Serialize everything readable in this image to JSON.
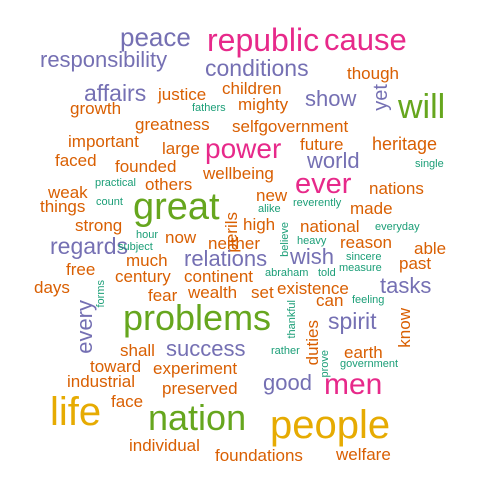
{
  "palette": {
    "orange": "#d95f02",
    "purple": "#7570b3",
    "magenta": "#e7298a",
    "green": "#66a61e",
    "gold": "#e6ab02",
    "teal": "#1b9e77"
  },
  "words": [
    {
      "text": "republic",
      "color": "magenta"
    },
    {
      "text": "cause",
      "color": "magenta"
    },
    {
      "text": "peace",
      "color": "purple"
    },
    {
      "text": "responsibility",
      "color": "purple"
    },
    {
      "text": "conditions",
      "color": "purple"
    },
    {
      "text": "though",
      "color": "orange"
    },
    {
      "text": "children",
      "color": "orange"
    },
    {
      "text": "affairs",
      "color": "purple"
    },
    {
      "text": "justice",
      "color": "orange"
    },
    {
      "text": "show",
      "color": "purple"
    },
    {
      "text": "yet",
      "color": "purple"
    },
    {
      "text": "will",
      "color": "green"
    },
    {
      "text": "growth",
      "color": "orange"
    },
    {
      "text": "fathers",
      "color": "teal"
    },
    {
      "text": "mighty",
      "color": "orange"
    },
    {
      "text": "greatness",
      "color": "orange"
    },
    {
      "text": "selfgovernment",
      "color": "orange"
    },
    {
      "text": "important",
      "color": "orange"
    },
    {
      "text": "large",
      "color": "orange"
    },
    {
      "text": "power",
      "color": "magenta"
    },
    {
      "text": "future",
      "color": "orange"
    },
    {
      "text": "heritage",
      "color": "orange"
    },
    {
      "text": "faced",
      "color": "orange"
    },
    {
      "text": "founded",
      "color": "orange"
    },
    {
      "text": "world",
      "color": "purple"
    },
    {
      "text": "single",
      "color": "teal"
    },
    {
      "text": "wellbeing",
      "color": "orange"
    },
    {
      "text": "practical",
      "color": "teal"
    },
    {
      "text": "others",
      "color": "orange"
    },
    {
      "text": "ever",
      "color": "magenta"
    },
    {
      "text": "nations",
      "color": "orange"
    },
    {
      "text": "weak",
      "color": "orange"
    },
    {
      "text": "things",
      "color": "orange"
    },
    {
      "text": "count",
      "color": "teal"
    },
    {
      "text": "great",
      "color": "green"
    },
    {
      "text": "new",
      "color": "orange"
    },
    {
      "text": "reverently",
      "color": "teal"
    },
    {
      "text": "made",
      "color": "orange"
    },
    {
      "text": "alike",
      "color": "teal"
    },
    {
      "text": "strong",
      "color": "orange"
    },
    {
      "text": "perils",
      "color": "orange"
    },
    {
      "text": "high",
      "color": "orange"
    },
    {
      "text": "national",
      "color": "orange"
    },
    {
      "text": "everyday",
      "color": "teal"
    },
    {
      "text": "hour",
      "color": "teal"
    },
    {
      "text": "now",
      "color": "orange"
    },
    {
      "text": "believe",
      "color": "teal"
    },
    {
      "text": "regards",
      "color": "purple"
    },
    {
      "text": "subject",
      "color": "teal"
    },
    {
      "text": "neither",
      "color": "orange"
    },
    {
      "text": "heavy",
      "color": "teal"
    },
    {
      "text": "reason",
      "color": "orange"
    },
    {
      "text": "able",
      "color": "orange"
    },
    {
      "text": "much",
      "color": "orange"
    },
    {
      "text": "relations",
      "color": "purple"
    },
    {
      "text": "wish",
      "color": "purple"
    },
    {
      "text": "sincere",
      "color": "teal"
    },
    {
      "text": "free",
      "color": "orange"
    },
    {
      "text": "measure",
      "color": "teal"
    },
    {
      "text": "past",
      "color": "orange"
    },
    {
      "text": "century",
      "color": "orange"
    },
    {
      "text": "continent",
      "color": "orange"
    },
    {
      "text": "abraham",
      "color": "teal"
    },
    {
      "text": "told",
      "color": "teal"
    },
    {
      "text": "days",
      "color": "orange"
    },
    {
      "text": "forms",
      "color": "teal"
    },
    {
      "text": "existence",
      "color": "orange"
    },
    {
      "text": "tasks",
      "color": "purple"
    },
    {
      "text": "fear",
      "color": "orange"
    },
    {
      "text": "wealth",
      "color": "orange"
    },
    {
      "text": "set",
      "color": "orange"
    },
    {
      "text": "thankful",
      "color": "teal"
    },
    {
      "text": "can",
      "color": "orange"
    },
    {
      "text": "feeling",
      "color": "teal"
    },
    {
      "text": "every",
      "color": "purple"
    },
    {
      "text": "problems",
      "color": "green"
    },
    {
      "text": "spirit",
      "color": "purple"
    },
    {
      "text": "know",
      "color": "orange"
    },
    {
      "text": "duties",
      "color": "orange"
    },
    {
      "text": "success",
      "color": "purple"
    },
    {
      "text": "shall",
      "color": "orange"
    },
    {
      "text": "rather",
      "color": "teal"
    },
    {
      "text": "earth",
      "color": "orange"
    },
    {
      "text": "prove",
      "color": "teal"
    },
    {
      "text": "government",
      "color": "teal"
    },
    {
      "text": "toward",
      "color": "orange"
    },
    {
      "text": "experiment",
      "color": "orange"
    },
    {
      "text": "industrial",
      "color": "orange"
    },
    {
      "text": "good",
      "color": "purple"
    },
    {
      "text": "men",
      "color": "magenta"
    },
    {
      "text": "preserved",
      "color": "orange"
    },
    {
      "text": "life",
      "color": "gold"
    },
    {
      "text": "face",
      "color": "orange"
    },
    {
      "text": "nation",
      "color": "green"
    },
    {
      "text": "people",
      "color": "gold"
    },
    {
      "text": "individual",
      "color": "orange"
    },
    {
      "text": "foundations",
      "color": "orange"
    },
    {
      "text": "welfare",
      "color": "orange"
    }
  ]
}
